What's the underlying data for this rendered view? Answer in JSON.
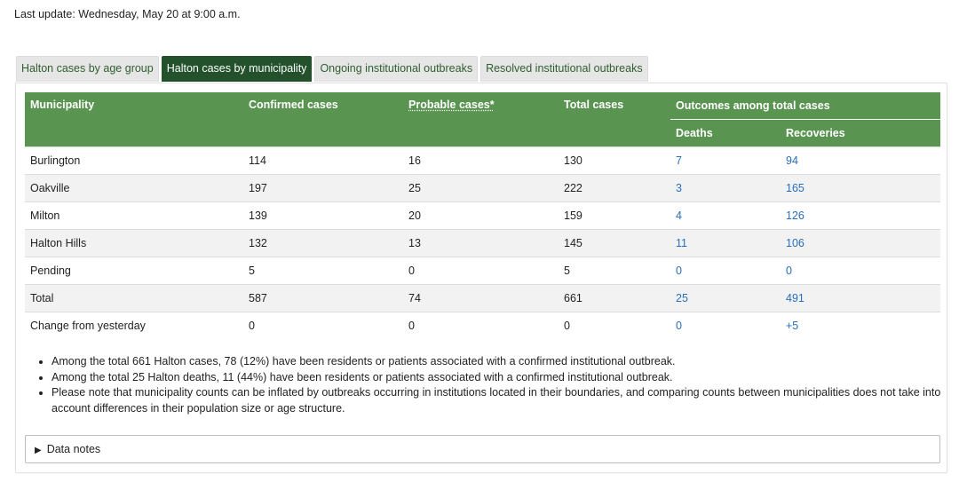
{
  "last_update": "Last update: Wednesday, May 20 at 9:00 a.m.",
  "tabs": [
    {
      "label": "Halton cases by age group",
      "active": false
    },
    {
      "label": "Halton cases by municipality",
      "active": true
    },
    {
      "label": "Ongoing institutional outbreaks",
      "active": false
    },
    {
      "label": "Resolved institutional outbreaks",
      "active": false
    }
  ],
  "table": {
    "headers": {
      "municipality": "Municipality",
      "confirmed": "Confirmed cases",
      "probable": "Probable cases*",
      "total": "Total cases",
      "outcomes": "Outcomes among total cases",
      "deaths": "Deaths",
      "recoveries": "Recoveries"
    },
    "rows": [
      {
        "municipality": "Burlington",
        "confirmed": "114",
        "probable": "16",
        "total": "130",
        "deaths": "7",
        "recoveries": "94"
      },
      {
        "municipality": "Oakville",
        "confirmed": "197",
        "probable": "25",
        "total": "222",
        "deaths": "3",
        "recoveries": "165"
      },
      {
        "municipality": "Milton",
        "confirmed": "139",
        "probable": "20",
        "total": "159",
        "deaths": "4",
        "recoveries": "126"
      },
      {
        "municipality": "Halton Hills",
        "confirmed": "132",
        "probable": "13",
        "total": "145",
        "deaths": "11",
        "recoveries": "106"
      },
      {
        "municipality": "Pending",
        "confirmed": "5",
        "probable": "0",
        "total": "5",
        "deaths": "0",
        "recoveries": "0"
      },
      {
        "municipality": "Total",
        "confirmed": "587",
        "probable": "74",
        "total": "661",
        "deaths": "25",
        "recoveries": "491"
      },
      {
        "municipality": "Change from yesterday",
        "confirmed": "0",
        "probable": "0",
        "total": "0",
        "deaths": "0",
        "recoveries": "+5"
      }
    ]
  },
  "notes": [
    "Among the total 661 Halton cases, 78 (12%) have been residents or patients associated with a confirmed institutional outbreak.",
    "Among the total 25 Halton deaths, 11 (44%) have been residents or patients associated with a confirmed institutional outbreak.",
    "Please note that municipality counts can be inflated by outbreaks occurring in institutions located in their boundaries, and comparing counts between municipalities does not take into account differences in their population size or age structure."
  ],
  "data_notes_label": "Data notes",
  "colors": {
    "header_green": "#5a9451",
    "active_tab": "#23512c",
    "link_blue": "#2a6fb8"
  }
}
